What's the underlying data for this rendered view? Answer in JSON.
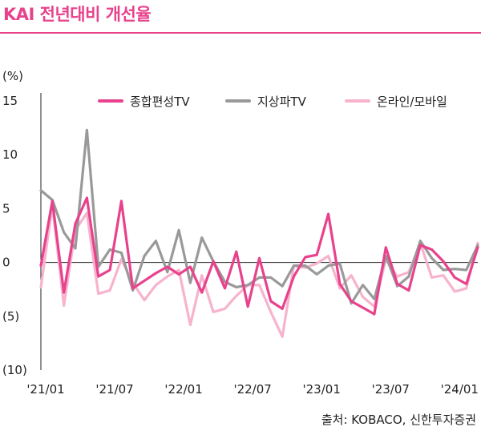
{
  "title": "KAI 전년대비 개선율",
  "source": "출처: KOBACO, 신한투자증권",
  "colors": {
    "accent": "#e8428c"
  },
  "chart_data": {
    "type": "line",
    "ylabel": "(%)",
    "ylim": [
      -10,
      15
    ],
    "yticks": [
      15,
      10,
      5,
      0,
      -5,
      -10
    ],
    "ytick_labels": [
      "15",
      "10",
      "5",
      "0",
      "(5)",
      "(10)"
    ],
    "xtick_labels": [
      "'21/01",
      "'21/07",
      "'22/01",
      "'22/07",
      "'23/01",
      "'23/07",
      "'24/01"
    ],
    "xtick_index": [
      0,
      6,
      12,
      18,
      24,
      30,
      36
    ],
    "legend_position": "top",
    "grid": false,
    "series": [
      {
        "name": "종합편성TV",
        "color": "#e8428c",
        "values": [
          -0.3,
          5.7,
          -2.8,
          3.6,
          6.0,
          -1.3,
          -0.7,
          5.7,
          -2.4,
          -1.7,
          -1.0,
          -0.4,
          -1.1,
          -0.4,
          -2.8,
          0.1,
          -2.4,
          1.0,
          -4.1,
          0.4,
          -3.6,
          -4.3,
          -1.3,
          0.5,
          0.7,
          4.5,
          -2.0,
          -3.6,
          -4.2,
          -4.8,
          1.4,
          -2.0,
          -2.6,
          1.6,
          1.2,
          0.1,
          -1.4,
          -2.0,
          1.4
        ]
      },
      {
        "name": "지상파TV",
        "color": "#999999",
        "values": [
          6.7,
          5.8,
          2.8,
          1.3,
          12.3,
          -0.4,
          1.2,
          0.9,
          -2.6,
          0.6,
          2.0,
          -0.9,
          3.0,
          -1.9,
          2.3,
          0.1,
          -1.8,
          -2.3,
          -2.1,
          -1.4,
          -1.4,
          -2.2,
          -0.3,
          -0.3,
          -1.1,
          -0.3,
          -0.1,
          -3.8,
          -2.1,
          -3.4,
          0.6,
          -2.2,
          -1.3,
          2.0,
          0.4,
          -0.7,
          -0.6,
          -0.7,
          1.6
        ]
      },
      {
        "name": "온라인/모바일",
        "color": "#f7b3cd",
        "values": [
          -2.3,
          5.3,
          -4.0,
          3.0,
          4.6,
          -2.9,
          -2.6,
          0.3,
          -1.9,
          -3.5,
          -2.1,
          -1.3,
          -0.7,
          -5.8,
          -1.2,
          -4.6,
          -4.3,
          -3.1,
          -2.1,
          -2.1,
          -4.6,
          -6.9,
          -0.3,
          -0.5,
          -0.1,
          0.6,
          -2.4,
          -1.2,
          -3.2,
          -4.1,
          0.3,
          -1.3,
          -0.9,
          1.8,
          -1.4,
          -1.2,
          -2.7,
          -2.4,
          1.8
        ]
      }
    ]
  }
}
